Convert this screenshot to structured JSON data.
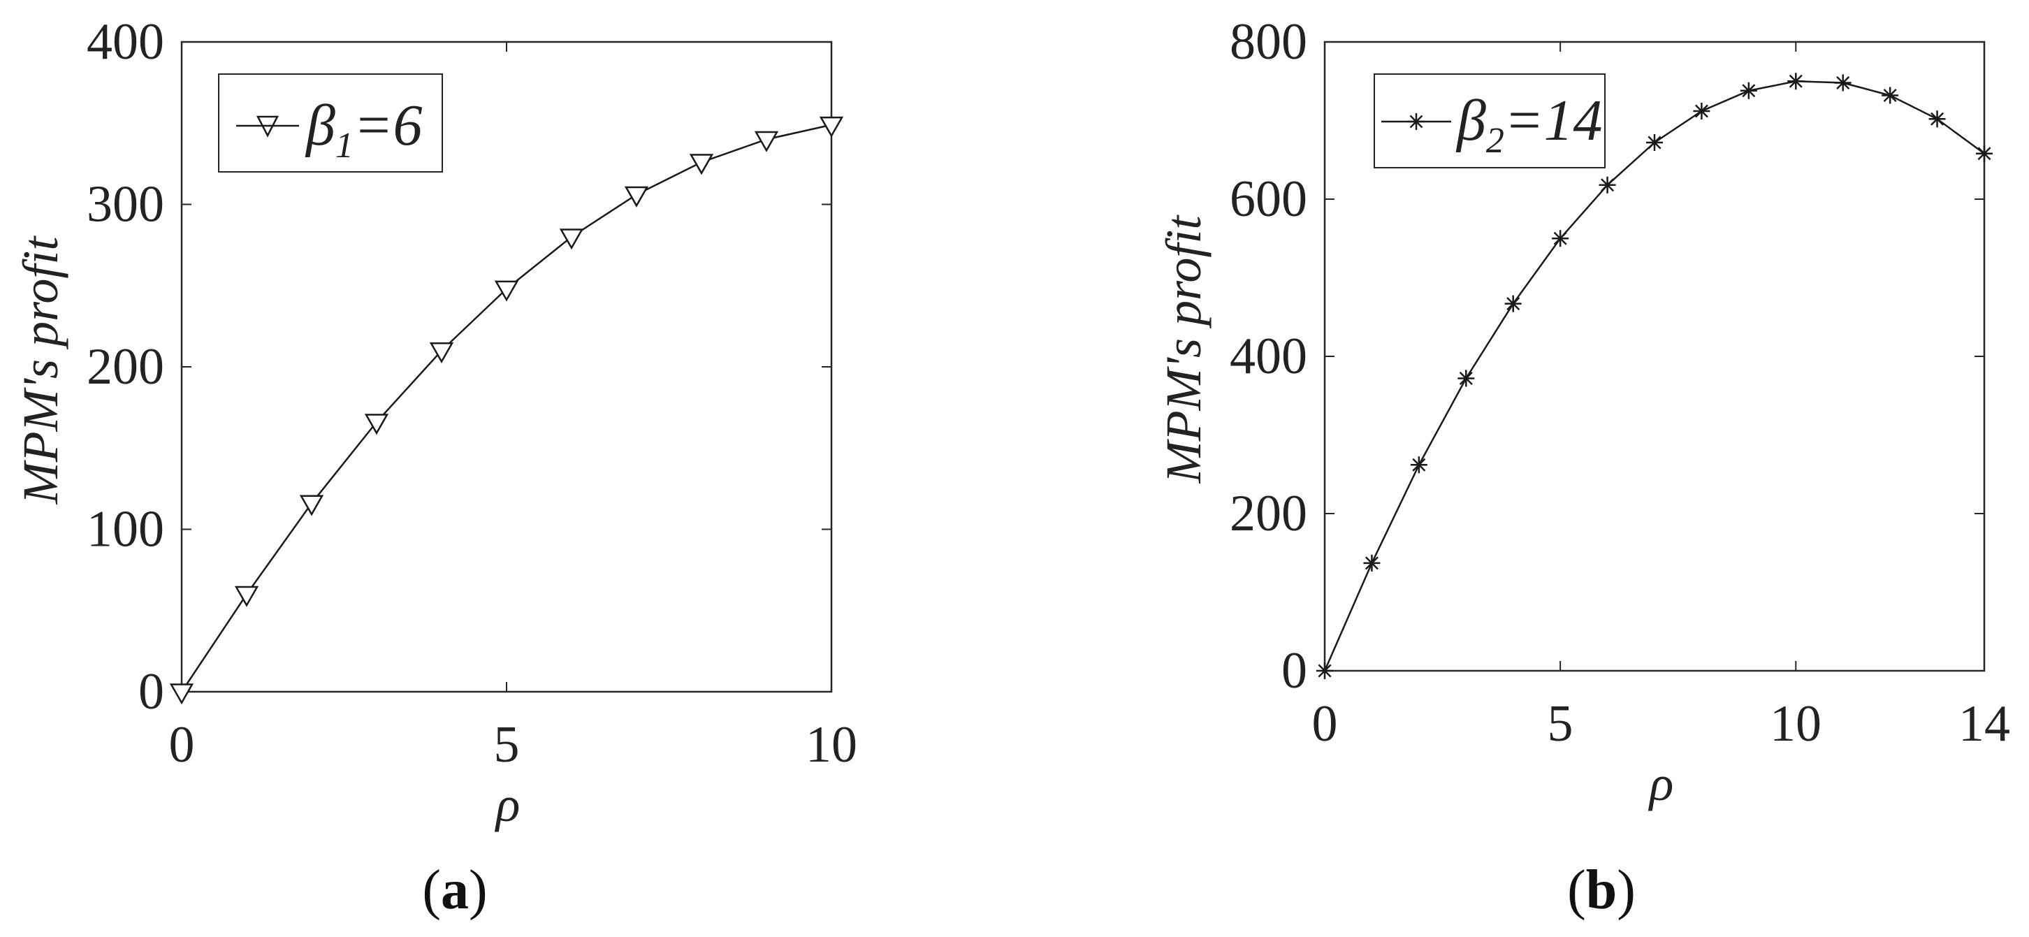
{
  "chart_data": [
    {
      "type": "line",
      "panel_label": "a",
      "xlabel": "ρ",
      "ylabel": "MPM's profit",
      "xlim": [
        0,
        10
      ],
      "ylim": [
        0,
        400
      ],
      "xticks": [
        "0",
        "5",
        "10"
      ],
      "yticks": [
        "0",
        "100",
        "200",
        "300",
        "400"
      ],
      "legend": {
        "position": "top-left",
        "symbol": "β",
        "subscript": "1",
        "rest": "=6"
      },
      "series": [
        {
          "name": "β1=6",
          "marker": "triangle-down",
          "x": [
            0,
            1,
            2,
            3,
            4,
            5,
            6,
            7,
            8,
            9,
            10
          ],
          "y": [
            0,
            60,
            116,
            166,
            210,
            248,
            280,
            306,
            326,
            340,
            349
          ]
        }
      ]
    },
    {
      "type": "line",
      "panel_label": "b",
      "xlabel": "ρ",
      "ylabel": "MPM's profit",
      "xlim": [
        0,
        14
      ],
      "ylim": [
        0,
        800
      ],
      "xticks": [
        "0",
        "5",
        "10",
        "14"
      ],
      "yticks": [
        "0",
        "200",
        "400",
        "600",
        "800"
      ],
      "legend": {
        "position": "top-left",
        "symbol": "β",
        "subscript": "2",
        "rest": "=14"
      },
      "series": [
        {
          "name": "β2=14",
          "marker": "asterisk",
          "x": [
            0,
            1,
            2,
            3,
            4,
            5,
            6,
            7,
            8,
            9,
            10,
            11,
            12,
            13,
            14
          ],
          "y": [
            0,
            137,
            262,
            372,
            467,
            550,
            618,
            672,
            712,
            738,
            750,
            748,
            732,
            702,
            658
          ]
        }
      ]
    }
  ]
}
